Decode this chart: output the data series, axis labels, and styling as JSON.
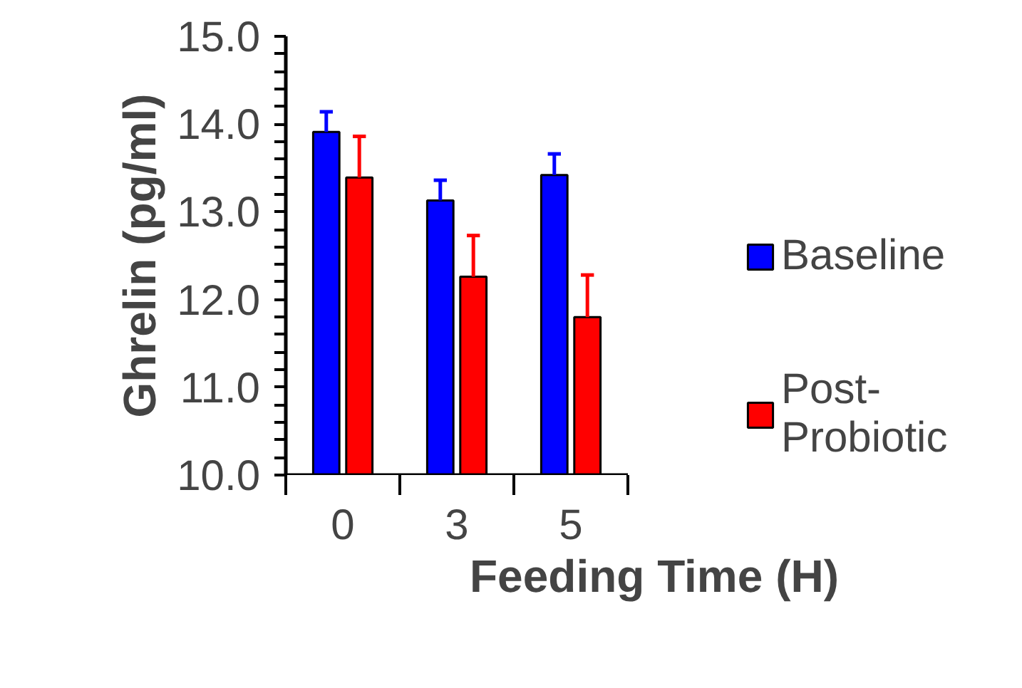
{
  "chart_data": {
    "type": "bar",
    "xlabel": "Feeding Time (H)",
    "ylabel": "Ghrelin (pg/ml)",
    "categories": [
      "0",
      "3",
      "5"
    ],
    "series": [
      {
        "name": "Baseline",
        "color": "#0000ff",
        "values": [
          13.91,
          13.13,
          13.42
        ],
        "errors": [
          [
            13.91,
            14.14
          ],
          [
            13.13,
            13.36
          ],
          [
            13.42,
            13.66
          ]
        ]
      },
      {
        "name": "Post-\nProbiotic",
        "color": "#ff0000",
        "values": [
          13.39,
          12.26,
          11.8
        ],
        "errors": [
          [
            13.39,
            13.86
          ],
          [
            12.26,
            12.73
          ],
          [
            11.8,
            12.28
          ]
        ]
      }
    ],
    "ylim": [
      10,
      15
    ],
    "yticks": [
      {
        "value": 10,
        "label": "10.0"
      },
      {
        "value": 10.2,
        "label": null
      },
      {
        "value": 10.4,
        "label": null
      },
      {
        "value": 10.6,
        "label": null
      },
      {
        "value": 10.8,
        "label": null
      },
      {
        "value": 11,
        "label": "11.0"
      },
      {
        "value": 11.2,
        "label": null
      },
      {
        "value": 11.4,
        "label": null
      },
      {
        "value": 11.6,
        "label": null
      },
      {
        "value": 11.8,
        "label": null
      },
      {
        "value": 12,
        "label": "12.0"
      },
      {
        "value": 12.2,
        "label": null
      },
      {
        "value": 12.4,
        "label": null
      },
      {
        "value": 12.6,
        "label": null
      },
      {
        "value": 12.8,
        "label": null
      },
      {
        "value": 13,
        "label": "13.0"
      },
      {
        "value": 13.2,
        "label": null
      },
      {
        "value": 13.4,
        "label": null
      },
      {
        "value": 13.6,
        "label": null
      },
      {
        "value": 13.8,
        "label": null
      },
      {
        "value": 14,
        "label": "14.0"
      },
      {
        "value": 14.2,
        "label": null
      },
      {
        "value": 14.4,
        "label": null
      },
      {
        "value": 14.6,
        "label": null
      },
      {
        "value": 14.8,
        "label": null
      },
      {
        "value": 15,
        "label": "15.0"
      }
    ],
    "grid": false,
    "legend": "right"
  }
}
